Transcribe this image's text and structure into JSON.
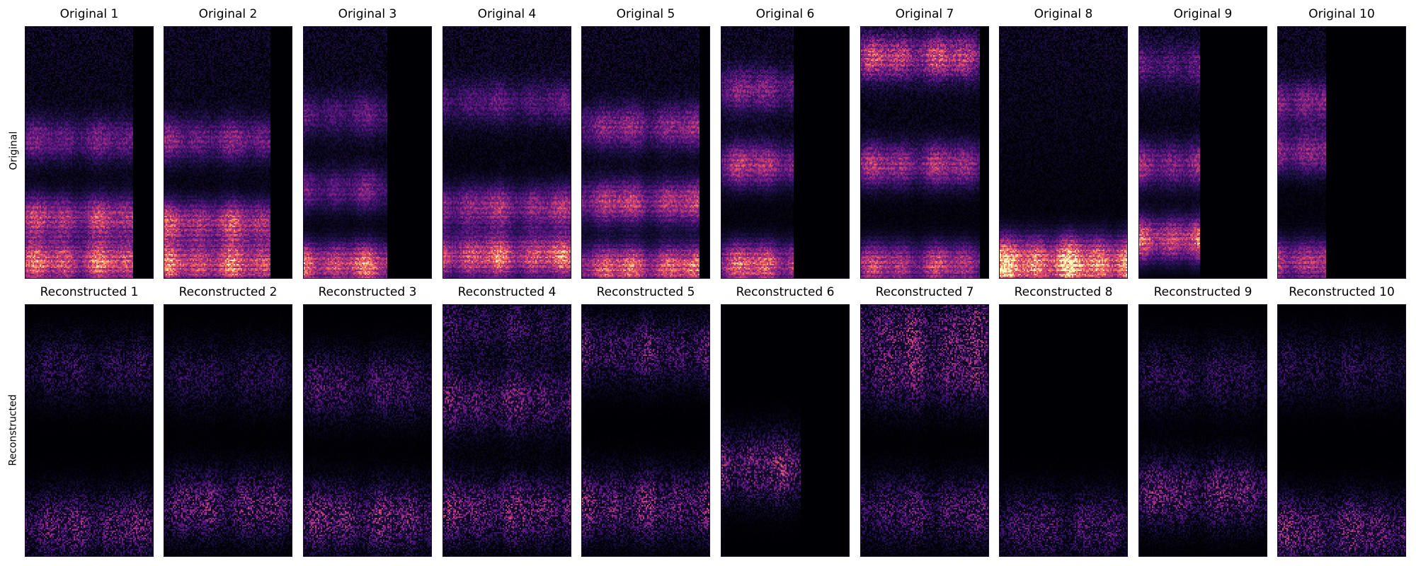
{
  "chart_data": {
    "type": "heatmap",
    "colormap": "magma",
    "background": "#000004",
    "row_labels": [
      "Original",
      "Reconstructed"
    ],
    "panels": [
      {
        "row": "Original",
        "title": "Original 1",
        "active_columns_fraction": 0.84,
        "bright_bands": [
          {
            "freq": 0.06,
            "strength": 1.0
          },
          {
            "freq": 0.24,
            "strength": 0.75
          },
          {
            "freq": 0.55,
            "strength": 0.45
          }
        ]
      },
      {
        "row": "Original",
        "title": "Original 2",
        "active_columns_fraction": 0.83,
        "bright_bands": [
          {
            "freq": 0.05,
            "strength": 1.0
          },
          {
            "freq": 0.22,
            "strength": 0.8
          },
          {
            "freq": 0.55,
            "strength": 0.5
          }
        ]
      },
      {
        "row": "Original",
        "title": "Original 3",
        "active_columns_fraction": 0.65,
        "bright_bands": [
          {
            "freq": 0.05,
            "strength": 1.0
          },
          {
            "freq": 0.35,
            "strength": 0.45
          },
          {
            "freq": 0.65,
            "strength": 0.35
          }
        ]
      },
      {
        "row": "Original",
        "title": "Original 4",
        "active_columns_fraction": 1.0,
        "bright_bands": [
          {
            "freq": 0.08,
            "strength": 1.0
          },
          {
            "freq": 0.28,
            "strength": 0.65
          },
          {
            "freq": 0.7,
            "strength": 0.35
          }
        ]
      },
      {
        "row": "Original",
        "title": "Original 5",
        "active_columns_fraction": 0.92,
        "bright_bands": [
          {
            "freq": 0.04,
            "strength": 1.0
          },
          {
            "freq": 0.3,
            "strength": 0.75
          },
          {
            "freq": 0.6,
            "strength": 0.55
          }
        ]
      },
      {
        "row": "Original",
        "title": "Original 6",
        "active_columns_fraction": 0.57,
        "bright_bands": [
          {
            "freq": 0.05,
            "strength": 1.0
          },
          {
            "freq": 0.45,
            "strength": 0.7
          },
          {
            "freq": 0.75,
            "strength": 0.5
          }
        ]
      },
      {
        "row": "Original",
        "title": "Original 7",
        "active_columns_fraction": 0.93,
        "bright_bands": [
          {
            "freq": 0.05,
            "strength": 0.8
          },
          {
            "freq": 0.45,
            "strength": 0.65
          },
          {
            "freq": 0.88,
            "strength": 0.75
          }
        ]
      },
      {
        "row": "Original",
        "title": "Original 8",
        "active_columns_fraction": 1.0,
        "bright_bands": [
          {
            "freq": 0.03,
            "strength": 1.0
          },
          {
            "freq": 0.1,
            "strength": 0.55
          }
        ]
      },
      {
        "row": "Original",
        "title": "Original 9",
        "active_columns_fraction": 0.48,
        "bright_bands": [
          {
            "freq": 0.15,
            "strength": 0.95
          },
          {
            "freq": 0.45,
            "strength": 0.6
          },
          {
            "freq": 0.85,
            "strength": 0.35
          }
        ]
      },
      {
        "row": "Original",
        "title": "Original 10",
        "active_columns_fraction": 0.38,
        "bright_bands": [
          {
            "freq": 0.06,
            "strength": 0.85
          },
          {
            "freq": 0.5,
            "strength": 0.6
          },
          {
            "freq": 0.7,
            "strength": 0.55
          }
        ]
      },
      {
        "row": "Reconstructed",
        "title": "Reconstructed 1",
        "active_columns_fraction": 1.0,
        "bright_bands": [
          {
            "freq": 0.12,
            "strength": 0.7
          },
          {
            "freq": 0.75,
            "strength": 0.4
          }
        ]
      },
      {
        "row": "Reconstructed",
        "title": "Reconstructed 2",
        "active_columns_fraction": 1.0,
        "bright_bands": [
          {
            "freq": 0.2,
            "strength": 0.75
          },
          {
            "freq": 0.72,
            "strength": 0.35
          }
        ]
      },
      {
        "row": "Reconstructed",
        "title": "Reconstructed 3",
        "active_columns_fraction": 1.0,
        "bright_bands": [
          {
            "freq": 0.15,
            "strength": 0.8
          },
          {
            "freq": 0.68,
            "strength": 0.55
          }
        ]
      },
      {
        "row": "Reconstructed",
        "title": "Reconstructed 4",
        "active_columns_fraction": 1.0,
        "bright_bands": [
          {
            "freq": 0.18,
            "strength": 0.8
          },
          {
            "freq": 0.62,
            "strength": 0.7
          },
          {
            "freq": 0.92,
            "strength": 0.45
          }
        ]
      },
      {
        "row": "Reconstructed",
        "title": "Reconstructed 5",
        "active_columns_fraction": 1.0,
        "bright_bands": [
          {
            "freq": 0.2,
            "strength": 0.8
          },
          {
            "freq": 0.82,
            "strength": 0.6
          }
        ]
      },
      {
        "row": "Reconstructed",
        "title": "Reconstructed 6",
        "active_columns_fraction": 0.62,
        "bright_bands": [
          {
            "freq": 0.35,
            "strength": 0.85
          }
        ]
      },
      {
        "row": "Reconstructed",
        "title": "Reconstructed 7",
        "active_columns_fraction": 1.0,
        "bright_bands": [
          {
            "freq": 0.18,
            "strength": 0.6
          },
          {
            "freq": 0.72,
            "strength": 0.65
          },
          {
            "freq": 0.92,
            "strength": 0.7
          }
        ]
      },
      {
        "row": "Reconstructed",
        "title": "Reconstructed 8",
        "active_columns_fraction": 1.0,
        "bright_bands": [
          {
            "freq": 0.12,
            "strength": 0.55
          }
        ]
      },
      {
        "row": "Reconstructed",
        "title": "Reconstructed 9",
        "active_columns_fraction": 1.0,
        "bright_bands": [
          {
            "freq": 0.25,
            "strength": 0.75
          },
          {
            "freq": 0.72,
            "strength": 0.4
          }
        ]
      },
      {
        "row": "Reconstructed",
        "title": "Reconstructed 10",
        "active_columns_fraction": 1.0,
        "bright_bands": [
          {
            "freq": 0.1,
            "strength": 0.75
          },
          {
            "freq": 0.75,
            "strength": 0.35
          }
        ]
      }
    ]
  }
}
